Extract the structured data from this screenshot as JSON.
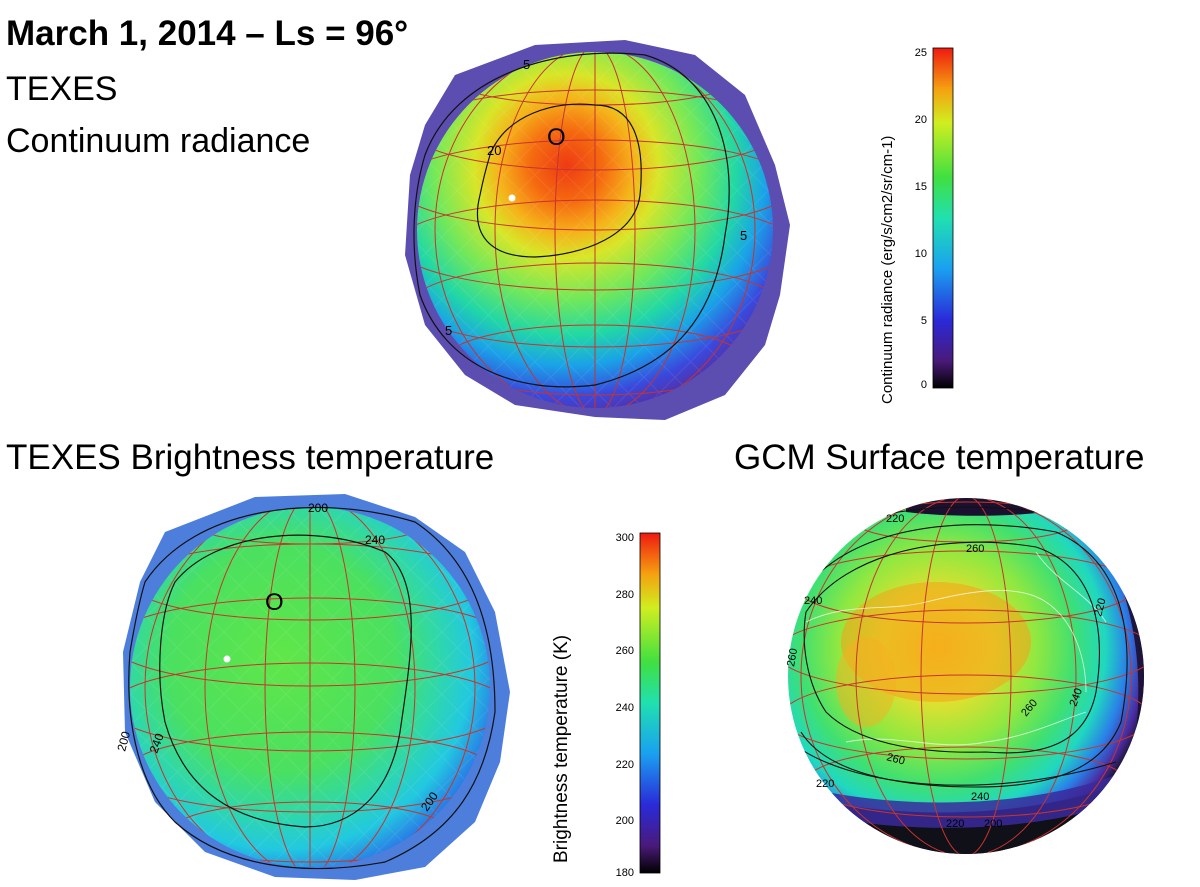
{
  "title": "March 1, 2014 – Ls = 96°",
  "subtitle_line1": "TEXES",
  "subtitle_line2": "Continuum radiance",
  "panel_bt_title": "TEXES Brightness temperature",
  "panel_gcm_title": "GCM Surface temperature",
  "colorbar_radiance": {
    "label": "Continuum radiance (erg/s/cm2/sr/cm-1)",
    "ticks": [
      "25",
      "20",
      "15",
      "10",
      "5",
      "0"
    ],
    "range": [
      0,
      25
    ]
  },
  "colorbar_bt": {
    "label": "Brightness temperature (K)",
    "ticks": [
      "300",
      "280",
      "260",
      "240",
      "220",
      "200",
      "180"
    ],
    "range": [
      180,
      300
    ]
  },
  "contours_radiance": [
    "20",
    "5",
    "5",
    "5"
  ],
  "contours_bt": [
    "200",
    "240",
    "200",
    "240",
    "200"
  ],
  "contours_gcm": [
    "220",
    "240",
    "260",
    "260",
    "260",
    "240",
    "220",
    "220",
    "200",
    "240",
    "260",
    "220"
  ],
  "markers": [
    "O",
    "O"
  ],
  "colors": {
    "grid": "#c8342c",
    "contour": "#111111"
  }
}
